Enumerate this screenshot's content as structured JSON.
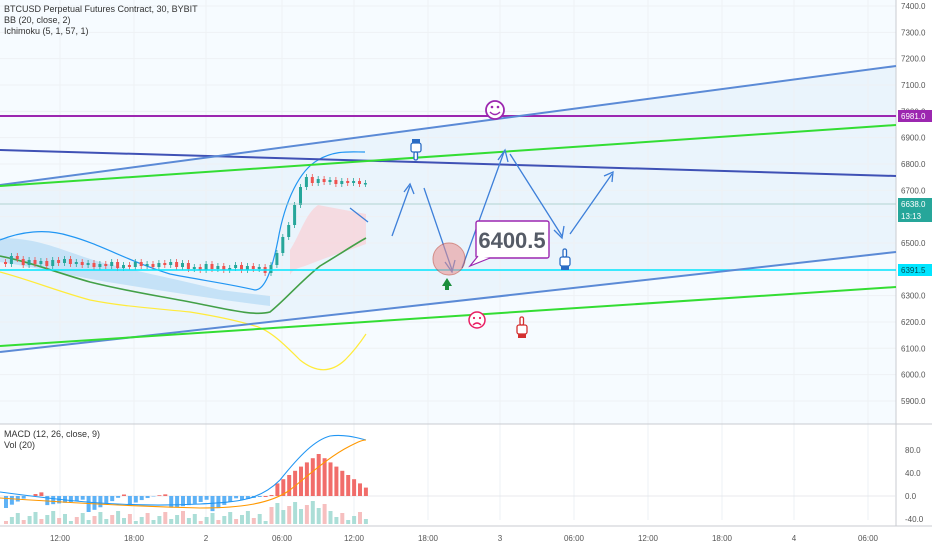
{
  "header": {
    "symbol_line": "BTCUSD Perpetual Futures Contract, 30, BYBIT",
    "bb_line": "BB (20, close, 2)",
    "ichimoku_line": "Ichimoku (5, 1, 57, 1)",
    "macd_line": "MACD (12, 26, close, 9)",
    "vol_line": "Vol (20)"
  },
  "price_scale": {
    "ticks": [
      "7400.0",
      "7300.0",
      "7200.0",
      "7100.0",
      "7000.0",
      "6900.0",
      "6800.0",
      "6700.0",
      "6600.0",
      "6500.0",
      "6400.0",
      "6300.0",
      "6200.0",
      "6100.0",
      "6000.0",
      "5900.0"
    ],
    "badges": [
      {
        "text": "6981.0",
        "color": "#9c27b0"
      },
      {
        "text": "6638.0",
        "color": "#26a69a"
      },
      {
        "text": "13:13",
        "color": "#26a69a"
      },
      {
        "text": "6391.5",
        "color": "#00e5ff"
      }
    ]
  },
  "macd_scale": {
    "ticks": [
      "80.0",
      "40.0",
      "0.0",
      "-40.0"
    ]
  },
  "time_axis": {
    "labels": [
      "12:00",
      "18:00",
      "2",
      "06:00",
      "12:00",
      "18:00",
      "3",
      "06:00",
      "12:00",
      "18:00",
      "4",
      "06:00"
    ]
  },
  "annotation": {
    "callout_text": "6400.5"
  },
  "colors": {
    "up_candle": "#26a69a",
    "down_candle": "#ef5350",
    "bb_upper": "#2196f3",
    "bb_lower": "#ffeb3b",
    "bb_basis": "#43a047",
    "trend_blue": "#5b8ad6",
    "trend_green": "#33dd33",
    "level_purple": "#9c27b0",
    "level_cyan": "#00e5ff",
    "channel_navy": "#3f51b5"
  },
  "icons": [
    "smiley-face-icon",
    "frown-face-icon",
    "pointing-hand-down-icon",
    "pointing-hand-up-icon",
    "up-arrow-icon"
  ],
  "chart_data": {
    "type": "candlestick",
    "y_range": [
      5840,
      7420
    ],
    "horizontal_levels": [
      6981.0,
      6391.5
    ],
    "last_price": 6638.0,
    "series": [
      {
        "name": "BB (20, close, 2)",
        "bands": [
          "upper",
          "basis",
          "lower"
        ]
      },
      {
        "name": "MACD (12, 26, close, 9)",
        "y_range": [
          -50,
          100
        ]
      },
      {
        "name": "Vol (20)"
      }
    ]
  }
}
